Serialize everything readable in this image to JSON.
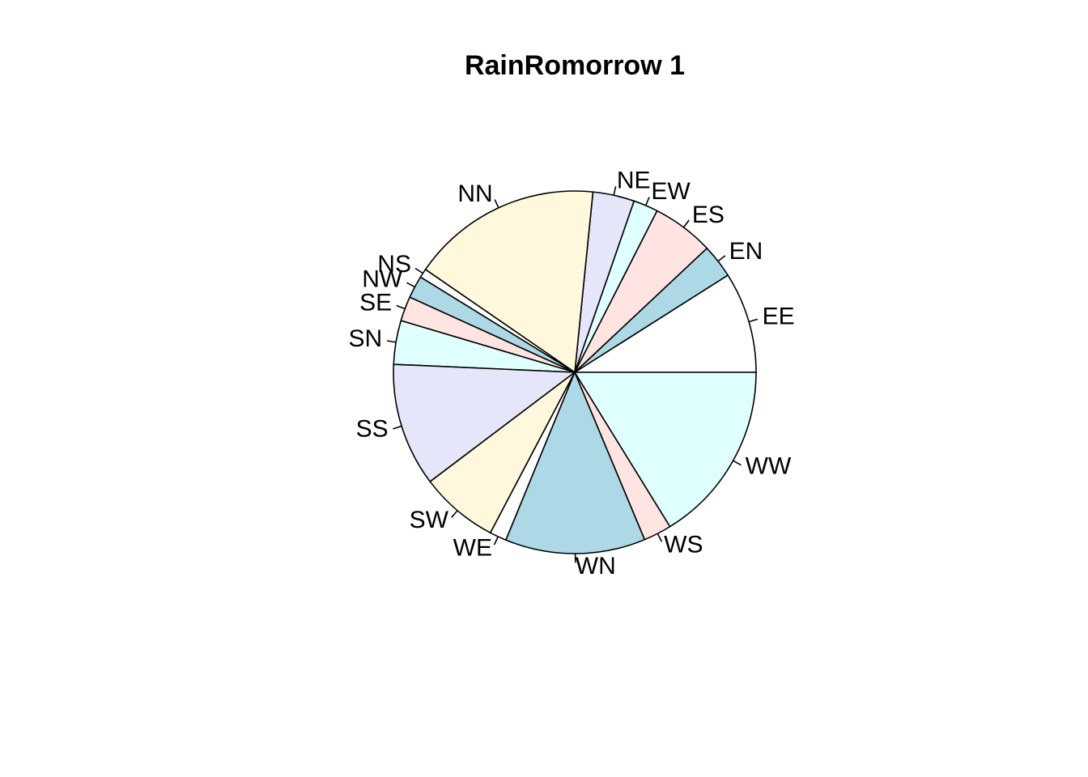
{
  "chart_data": {
    "type": "pie",
    "title": "RainRomorrow 1",
    "direction": "counterclockwise",
    "start": "3 o'clock",
    "slices": [
      {
        "label": "EE",
        "value": 9.0,
        "color": "#ffffff"
      },
      {
        "label": "EN",
        "value": 3.0,
        "color": "#add8e6"
      },
      {
        "label": "ES",
        "value": 5.5,
        "color": "#ffe4e1"
      },
      {
        "label": "EW",
        "value": 2.2,
        "color": "#e0ffff"
      },
      {
        "label": "NE",
        "value": 3.7,
        "color": "#e6e6fa"
      },
      {
        "label": "NN",
        "value": 17.0,
        "color": "#fff8dc"
      },
      {
        "label": "NS",
        "value": 0.8,
        "color": "#ffffff"
      },
      {
        "label": "NW",
        "value": 2.0,
        "color": "#add8e6"
      },
      {
        "label": "SE",
        "value": 2.2,
        "color": "#ffe4e1"
      },
      {
        "label": "SN",
        "value": 3.9,
        "color": "#e0ffff"
      },
      {
        "label": "SS",
        "value": 11.0,
        "color": "#e6e6fa"
      },
      {
        "label": "SW",
        "value": 7.0,
        "color": "#fff8dc"
      },
      {
        "label": "WE",
        "value": 1.5,
        "color": "#ffffff"
      },
      {
        "label": "WN",
        "value": 12.5,
        "color": "#add8e6"
      },
      {
        "label": "WS",
        "value": 2.5,
        "color": "#ffe4e1"
      },
      {
        "label": "WW",
        "value": 16.2,
        "color": "#e0ffff"
      }
    ]
  }
}
